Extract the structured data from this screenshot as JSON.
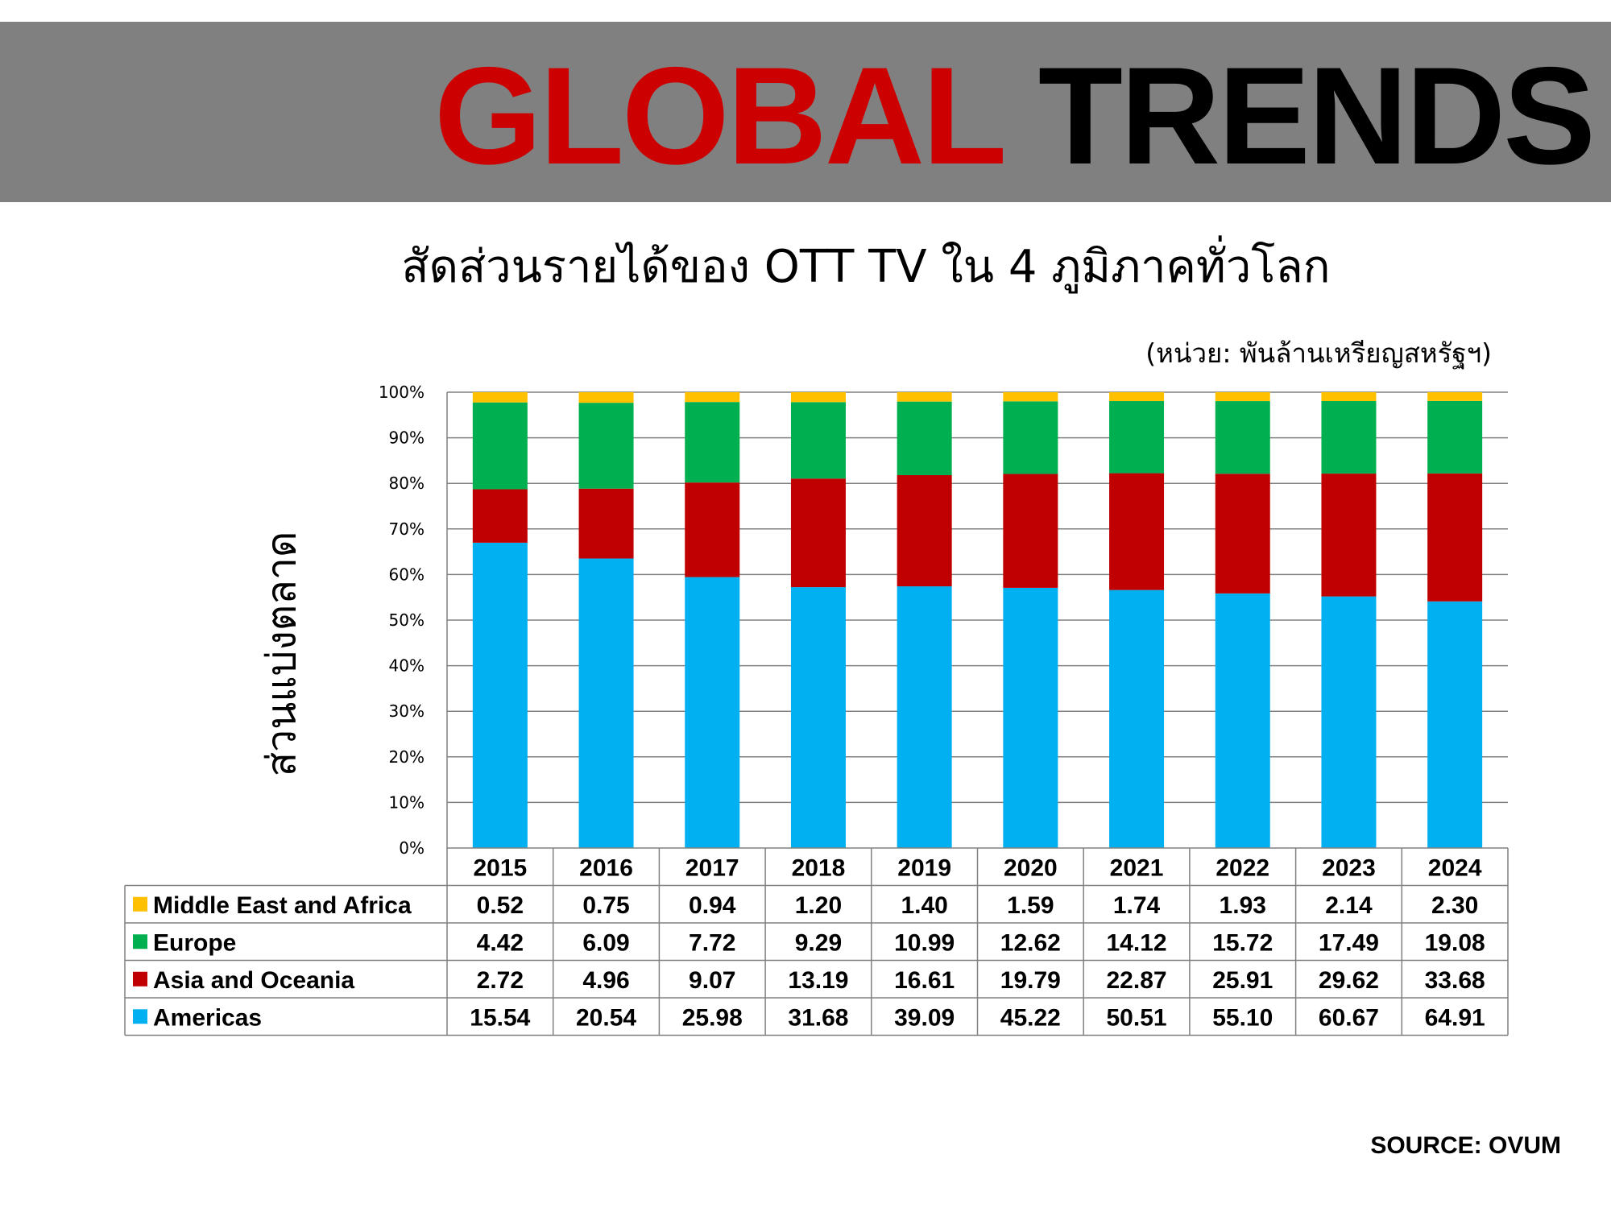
{
  "banner": {
    "title_word1": "GLOBAL",
    "title_word2": "TRENDS",
    "color_word1": "#cc0000",
    "color_word2": "#000000",
    "background": "#808080"
  },
  "unit_note": "(หน่วย: พันล้านเหรียญสหรัฐฯ)",
  "source": "SOURCE: OVUM",
  "chart_data": {
    "type": "bar",
    "stacked": "percent",
    "title": "สัดส่วนรายได้ของ OTT TV ใน 4 ภูมิภาคทั่วโลก",
    "ylabel": "ส่วนแบ่งตลาด",
    "ylim": [
      0,
      100
    ],
    "yticks": [
      "0%",
      "10%",
      "20%",
      "30%",
      "40%",
      "50%",
      "60%",
      "70%",
      "80%",
      "90%",
      "100%"
    ],
    "grid": true,
    "categories": [
      "2015",
      "2016",
      "2017",
      "2018",
      "2019",
      "2020",
      "2021",
      "2022",
      "2023",
      "2024"
    ],
    "series": [
      {
        "name": "Middle East and Africa",
        "color": "#ffc000",
        "values": [
          "0.52",
          "0.75",
          "0.94",
          "1.20",
          "1.40",
          "1.59",
          "1.74",
          "1.93",
          "2.14",
          "2.30"
        ]
      },
      {
        "name": "Europe",
        "color": "#00b050",
        "values": [
          "4.42",
          "6.09",
          "7.72",
          "9.29",
          "10.99",
          "12.62",
          "14.12",
          "15.72",
          "17.49",
          "19.08"
        ]
      },
      {
        "name": "Asia and Oceania",
        "color": "#c00000",
        "values": [
          "2.72",
          "4.96",
          "9.07",
          "13.19",
          "16.61",
          "19.79",
          "22.87",
          "25.91",
          "29.62",
          "33.68"
        ]
      },
      {
        "name": "Americas",
        "color": "#00b0f0",
        "values": [
          "15.54",
          "20.54",
          "25.98",
          "31.68",
          "39.09",
          "45.22",
          "50.51",
          "55.10",
          "60.67",
          "64.91"
        ]
      }
    ],
    "stack_order_bottom_to_top": [
      "Americas",
      "Asia and Oceania",
      "Europe",
      "Middle East and Africa"
    ]
  }
}
